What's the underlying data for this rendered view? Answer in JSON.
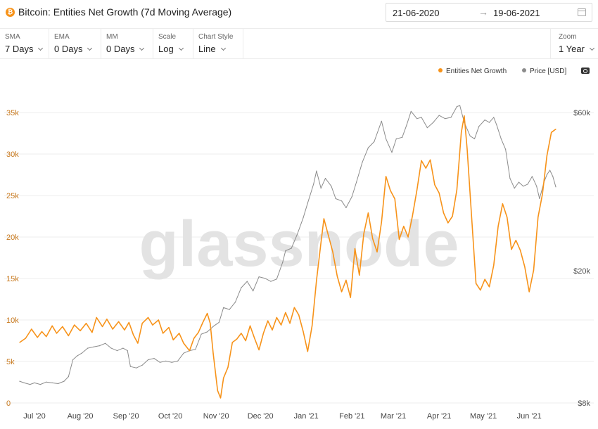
{
  "header": {
    "title": "Bitcoin: Entities Net Growth (7d Moving Average)",
    "asset_icon": "bitcoin-icon",
    "date_start": "21-06-2020",
    "date_arrow": "→",
    "date_end": "19-06-2021"
  },
  "controls": [
    {
      "label": "SMA",
      "value": "7 Days"
    },
    {
      "label": "EMA",
      "value": "0 Days"
    },
    {
      "label": "MM",
      "value": "0 Days"
    },
    {
      "label": "Scale",
      "value": "Log"
    },
    {
      "label": "Chart Style",
      "value": "Line"
    }
  ],
  "zoom": {
    "label": "Zoom",
    "value": "1 Year"
  },
  "watermark": "glassnode",
  "colors": {
    "entities": "#f7931a",
    "price": "#8c8c8c",
    "grid": "#eeeeee",
    "left_axis": "#c8791e",
    "right_axis": "#555555"
  },
  "chart_data": {
    "type": "line",
    "x_label": "",
    "x_ticks": [
      "Jul '20",
      "Aug '20",
      "Sep '20",
      "Oct '20",
      "Nov '20",
      "Dec '20",
      "Jan '21",
      "Feb '21",
      "Mar '21",
      "Apr '21",
      "May '21",
      "Jun '21"
    ],
    "x_range": [
      "2020-06-21",
      "2021-06-19"
    ],
    "left_axis": {
      "ticks": [
        "0",
        "5k",
        "10k",
        "15k",
        "20k",
        "25k",
        "30k",
        "35k"
      ],
      "range": [
        0,
        35000
      ]
    },
    "right_axis": {
      "ticks": [
        "$8k",
        "$20k",
        "$60k"
      ],
      "scale": "log",
      "range": [
        8000,
        60000
      ]
    },
    "legend_position": "top-right",
    "series": [
      {
        "name": "Entities Net Growth",
        "axis": "left",
        "points": [
          [
            "2020-06-21",
            7300
          ],
          [
            "2020-06-25",
            7800
          ],
          [
            "2020-06-29",
            8900
          ],
          [
            "2020-07-03",
            7900
          ],
          [
            "2020-07-06",
            8600
          ],
          [
            "2020-07-09",
            8000
          ],
          [
            "2020-07-13",
            9300
          ],
          [
            "2020-07-16",
            8400
          ],
          [
            "2020-07-20",
            9200
          ],
          [
            "2020-07-24",
            8100
          ],
          [
            "2020-07-28",
            9400
          ],
          [
            "2020-08-01",
            8700
          ],
          [
            "2020-08-05",
            9600
          ],
          [
            "2020-08-09",
            8500
          ],
          [
            "2020-08-12",
            10300
          ],
          [
            "2020-08-16",
            9200
          ],
          [
            "2020-08-19",
            10100
          ],
          [
            "2020-08-23",
            8900
          ],
          [
            "2020-08-27",
            9800
          ],
          [
            "2020-08-31",
            8800
          ],
          [
            "2020-09-03",
            9700
          ],
          [
            "2020-09-06",
            8200
          ],
          [
            "2020-09-09",
            7200
          ],
          [
            "2020-09-12",
            9600
          ],
          [
            "2020-09-16",
            10300
          ],
          [
            "2020-09-19",
            9400
          ],
          [
            "2020-09-23",
            10000
          ],
          [
            "2020-09-26",
            8400
          ],
          [
            "2020-09-30",
            9100
          ],
          [
            "2020-10-03",
            7600
          ],
          [
            "2020-10-07",
            8400
          ],
          [
            "2020-10-10",
            7200
          ],
          [
            "2020-10-14",
            6300
          ],
          [
            "2020-10-17",
            7800
          ],
          [
            "2020-10-20",
            8500
          ],
          [
            "2020-10-23",
            9700
          ],
          [
            "2020-10-26",
            10800
          ],
          [
            "2020-10-28",
            9600
          ],
          [
            "2020-10-30",
            6000
          ],
          [
            "2020-11-02",
            1500
          ],
          [
            "2020-11-04",
            600
          ],
          [
            "2020-11-06",
            3000
          ],
          [
            "2020-11-09",
            4300
          ],
          [
            "2020-11-12",
            7300
          ],
          [
            "2020-11-15",
            7700
          ],
          [
            "2020-11-18",
            8400
          ],
          [
            "2020-11-21",
            7500
          ],
          [
            "2020-11-24",
            9300
          ],
          [
            "2020-11-27",
            7800
          ],
          [
            "2020-11-30",
            6400
          ],
          [
            "2020-12-03",
            8400
          ],
          [
            "2020-12-06",
            9900
          ],
          [
            "2020-12-09",
            8800
          ],
          [
            "2020-12-12",
            10300
          ],
          [
            "2020-12-15",
            9400
          ],
          [
            "2020-12-18",
            10900
          ],
          [
            "2020-12-21",
            9600
          ],
          [
            "2020-12-24",
            11500
          ],
          [
            "2020-12-27",
            10600
          ],
          [
            "2020-12-30",
            8600
          ],
          [
            "2021-01-02",
            6200
          ],
          [
            "2021-01-05",
            9300
          ],
          [
            "2021-01-08",
            14800
          ],
          [
            "2021-01-11",
            19300
          ],
          [
            "2021-01-13",
            22200
          ],
          [
            "2021-01-16",
            20200
          ],
          [
            "2021-01-19",
            18200
          ],
          [
            "2021-01-22",
            15300
          ],
          [
            "2021-01-25",
            13400
          ],
          [
            "2021-01-28",
            14800
          ],
          [
            "2021-01-31",
            12700
          ],
          [
            "2021-02-03",
            18600
          ],
          [
            "2021-02-06",
            15400
          ],
          [
            "2021-02-09",
            20400
          ],
          [
            "2021-02-12",
            22900
          ],
          [
            "2021-02-15",
            19800
          ],
          [
            "2021-02-18",
            18200
          ],
          [
            "2021-02-21",
            21800
          ],
          [
            "2021-02-24",
            27300
          ],
          [
            "2021-02-27",
            25600
          ],
          [
            "2021-03-02",
            24600
          ],
          [
            "2021-03-05",
            19700
          ],
          [
            "2021-03-08",
            21300
          ],
          [
            "2021-03-11",
            20000
          ],
          [
            "2021-03-14",
            22600
          ],
          [
            "2021-03-17",
            25700
          ],
          [
            "2021-03-20",
            29200
          ],
          [
            "2021-03-23",
            28300
          ],
          [
            "2021-03-26",
            29300
          ],
          [
            "2021-03-29",
            26300
          ],
          [
            "2021-04-01",
            25300
          ],
          [
            "2021-04-04",
            22900
          ],
          [
            "2021-04-07",
            21700
          ],
          [
            "2021-04-10",
            22500
          ],
          [
            "2021-04-13",
            25700
          ],
          [
            "2021-04-16",
            32600
          ],
          [
            "2021-04-18",
            34600
          ],
          [
            "2021-04-20",
            30600
          ],
          [
            "2021-04-23",
            22500
          ],
          [
            "2021-04-26",
            14400
          ],
          [
            "2021-04-29",
            13600
          ],
          [
            "2021-05-02",
            14900
          ],
          [
            "2021-05-05",
            14000
          ],
          [
            "2021-05-08",
            16600
          ],
          [
            "2021-05-11",
            21300
          ],
          [
            "2021-05-14",
            24000
          ],
          [
            "2021-05-17",
            22400
          ],
          [
            "2021-05-20",
            18500
          ],
          [
            "2021-05-23",
            19600
          ],
          [
            "2021-05-26",
            18400
          ],
          [
            "2021-05-29",
            16400
          ],
          [
            "2021-06-01",
            13400
          ],
          [
            "2021-06-04",
            16000
          ],
          [
            "2021-06-07",
            22400
          ],
          [
            "2021-06-10",
            25200
          ],
          [
            "2021-06-13",
            29800
          ],
          [
            "2021-06-16",
            32600
          ],
          [
            "2021-06-19",
            33000
          ]
        ]
      },
      {
        "name": "Price [USD]",
        "axis": "right",
        "points": [
          [
            "2020-06-21",
            9300
          ],
          [
            "2020-06-24",
            9200
          ],
          [
            "2020-06-28",
            9100
          ],
          [
            "2020-07-01",
            9200
          ],
          [
            "2020-07-05",
            9100
          ],
          [
            "2020-07-09",
            9250
          ],
          [
            "2020-07-13",
            9200
          ],
          [
            "2020-07-17",
            9150
          ],
          [
            "2020-07-21",
            9300
          ],
          [
            "2020-07-24",
            9600
          ],
          [
            "2020-07-27",
            10800
          ],
          [
            "2020-07-30",
            11100
          ],
          [
            "2020-08-02",
            11300
          ],
          [
            "2020-08-06",
            11700
          ],
          [
            "2020-08-10",
            11800
          ],
          [
            "2020-08-14",
            11900
          ],
          [
            "2020-08-18",
            12100
          ],
          [
            "2020-08-22",
            11700
          ],
          [
            "2020-08-26",
            11500
          ],
          [
            "2020-08-30",
            11700
          ],
          [
            "2020-09-02",
            11500
          ],
          [
            "2020-09-04",
            10300
          ],
          [
            "2020-09-08",
            10200
          ],
          [
            "2020-09-12",
            10400
          ],
          [
            "2020-09-16",
            10800
          ],
          [
            "2020-09-20",
            10900
          ],
          [
            "2020-09-24",
            10600
          ],
          [
            "2020-09-28",
            10700
          ],
          [
            "2020-10-02",
            10600
          ],
          [
            "2020-10-06",
            10700
          ],
          [
            "2020-10-10",
            11300
          ],
          [
            "2020-10-14",
            11500
          ],
          [
            "2020-10-18",
            11600
          ],
          [
            "2020-10-22",
            12900
          ],
          [
            "2020-10-26",
            13100
          ],
          [
            "2020-10-30",
            13600
          ],
          [
            "2020-11-03",
            14000
          ],
          [
            "2020-11-06",
            15500
          ],
          [
            "2020-11-10",
            15300
          ],
          [
            "2020-11-14",
            16100
          ],
          [
            "2020-11-18",
            17800
          ],
          [
            "2020-11-22",
            18600
          ],
          [
            "2020-11-26",
            17400
          ],
          [
            "2020-11-30",
            19200
          ],
          [
            "2020-12-04",
            19000
          ],
          [
            "2020-12-08",
            18600
          ],
          [
            "2020-12-12",
            18900
          ],
          [
            "2020-12-16",
            21200
          ],
          [
            "2020-12-18",
            23000
          ],
          [
            "2020-12-22",
            23400
          ],
          [
            "2020-12-26",
            25800
          ],
          [
            "2020-12-30",
            28900
          ],
          [
            "2021-01-02",
            32000
          ],
          [
            "2021-01-06",
            36500
          ],
          [
            "2021-01-08",
            40000
          ],
          [
            "2021-01-11",
            35500
          ],
          [
            "2021-01-14",
            38000
          ],
          [
            "2021-01-18",
            36000
          ],
          [
            "2021-01-21",
            33000
          ],
          [
            "2021-01-25",
            32500
          ],
          [
            "2021-01-28",
            31000
          ],
          [
            "2021-02-01",
            33500
          ],
          [
            "2021-02-04",
            37000
          ],
          [
            "2021-02-08",
            42500
          ],
          [
            "2021-02-12",
            47000
          ],
          [
            "2021-02-16",
            49000
          ],
          [
            "2021-02-21",
            56500
          ],
          [
            "2021-02-24",
            50000
          ],
          [
            "2021-02-28",
            45500
          ],
          [
            "2021-03-03",
            50000
          ],
          [
            "2021-03-07",
            50500
          ],
          [
            "2021-03-10",
            55000
          ],
          [
            "2021-03-13",
            60500
          ],
          [
            "2021-03-17",
            57500
          ],
          [
            "2021-03-20",
            58000
          ],
          [
            "2021-03-24",
            54000
          ],
          [
            "2021-03-28",
            56000
          ],
          [
            "2021-04-01",
            58800
          ],
          [
            "2021-04-05",
            57500
          ],
          [
            "2021-04-09",
            58000
          ],
          [
            "2021-04-13",
            62500
          ],
          [
            "2021-04-15",
            63000
          ],
          [
            "2021-04-18",
            56000
          ],
          [
            "2021-04-22",
            51000
          ],
          [
            "2021-04-25",
            50000
          ],
          [
            "2021-04-28",
            54500
          ],
          [
            "2021-05-02",
            57000
          ],
          [
            "2021-05-05",
            56000
          ],
          [
            "2021-05-08",
            58000
          ],
          [
            "2021-05-10",
            55000
          ],
          [
            "2021-05-13",
            50000
          ],
          [
            "2021-05-16",
            46500
          ],
          [
            "2021-05-19",
            38000
          ],
          [
            "2021-05-22",
            35500
          ],
          [
            "2021-05-25",
            37000
          ],
          [
            "2021-05-28",
            36000
          ],
          [
            "2021-05-31",
            36500
          ],
          [
            "2021-06-03",
            38500
          ],
          [
            "2021-06-06",
            36000
          ],
          [
            "2021-06-08",
            33000
          ],
          [
            "2021-06-11",
            37000
          ],
          [
            "2021-06-13",
            39000
          ],
          [
            "2021-06-15",
            40200
          ],
          [
            "2021-06-17",
            38500
          ],
          [
            "2021-06-19",
            35800
          ]
        ]
      }
    ]
  }
}
